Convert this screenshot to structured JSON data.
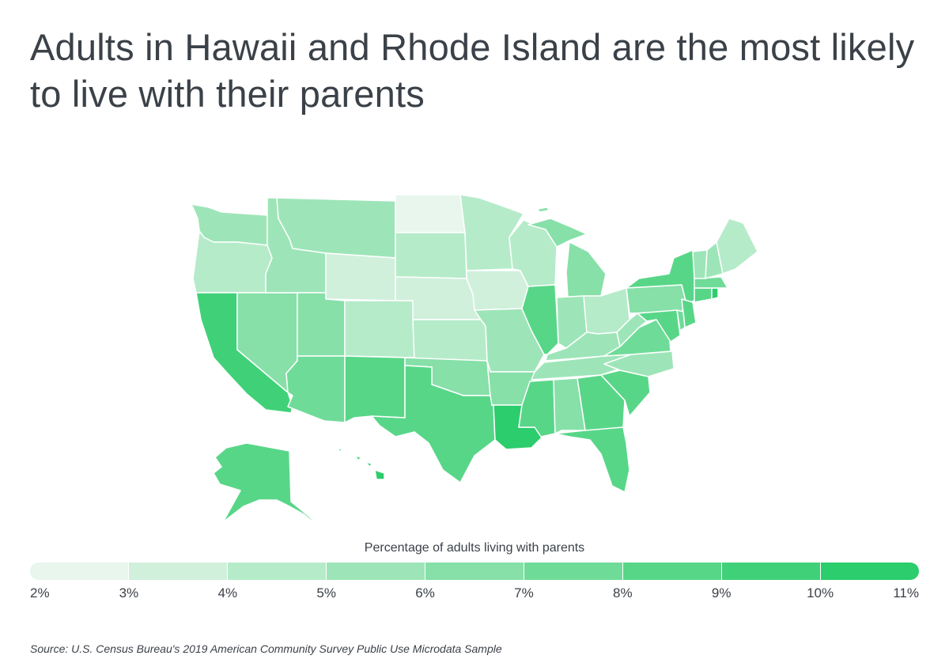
{
  "title": "Adults in Hawaii and Rhode Island are the most likely to live with their parents",
  "legend": {
    "title": "Percentage of adults living with parents",
    "ticks": [
      "2%",
      "3%",
      "4%",
      "5%",
      "6%",
      "7%",
      "8%",
      "9%",
      "10%",
      "11%"
    ],
    "colors": [
      "#e8f6ed",
      "#d0f0dc",
      "#b5ebc9",
      "#9de5b8",
      "#86e0a8",
      "#6fdb98",
      "#58d688",
      "#40d178",
      "#2bcd6c"
    ]
  },
  "source": "Source:  U.S. Census Bureau's 2019 American Community Survey Public Use Microdata Sample",
  "map": {
    "type": "choropleth",
    "regions": [
      {
        "name": "Washington",
        "color_bin": 3
      },
      {
        "name": "Oregon",
        "color_bin": 2
      },
      {
        "name": "California",
        "color_bin": 7
      },
      {
        "name": "Nevada",
        "color_bin": 4
      },
      {
        "name": "Idaho",
        "color_bin": 3
      },
      {
        "name": "Montana",
        "color_bin": 3
      },
      {
        "name": "Wyoming",
        "color_bin": 1
      },
      {
        "name": "Utah",
        "color_bin": 4
      },
      {
        "name": "Arizona",
        "color_bin": 5
      },
      {
        "name": "Colorado",
        "color_bin": 2
      },
      {
        "name": "New Mexico",
        "color_bin": 6
      },
      {
        "name": "North Dakota",
        "color_bin": 0
      },
      {
        "name": "South Dakota",
        "color_bin": 2
      },
      {
        "name": "Nebraska",
        "color_bin": 1
      },
      {
        "name": "Kansas",
        "color_bin": 2
      },
      {
        "name": "Oklahoma",
        "color_bin": 4
      },
      {
        "name": "Texas",
        "color_bin": 6
      },
      {
        "name": "Minnesota",
        "color_bin": 2
      },
      {
        "name": "Iowa",
        "color_bin": 1
      },
      {
        "name": "Missouri",
        "color_bin": 3
      },
      {
        "name": "Arkansas",
        "color_bin": 4
      },
      {
        "name": "Louisiana",
        "color_bin": 8
      },
      {
        "name": "Wisconsin",
        "color_bin": 2
      },
      {
        "name": "Illinois",
        "color_bin": 6
      },
      {
        "name": "Michigan",
        "color_bin": 4
      },
      {
        "name": "Indiana",
        "color_bin": 3
      },
      {
        "name": "Ohio",
        "color_bin": 2
      },
      {
        "name": "Kentucky",
        "color_bin": 3
      },
      {
        "name": "Tennessee",
        "color_bin": 3
      },
      {
        "name": "Mississippi",
        "color_bin": 6
      },
      {
        "name": "Alabama",
        "color_bin": 4
      },
      {
        "name": "Georgia",
        "color_bin": 6
      },
      {
        "name": "Florida",
        "color_bin": 6
      },
      {
        "name": "South Carolina",
        "color_bin": 6
      },
      {
        "name": "North Carolina",
        "color_bin": 3
      },
      {
        "name": "Virginia",
        "color_bin": 5
      },
      {
        "name": "West Virginia",
        "color_bin": 3
      },
      {
        "name": "Pennsylvania",
        "color_bin": 4
      },
      {
        "name": "New York",
        "color_bin": 6
      },
      {
        "name": "New Jersey",
        "color_bin": 6
      },
      {
        "name": "Maryland",
        "color_bin": 6
      },
      {
        "name": "Delaware",
        "color_bin": 5
      },
      {
        "name": "Connecticut",
        "color_bin": 6
      },
      {
        "name": "Rhode Island",
        "color_bin": 8
      },
      {
        "name": "Massachusetts",
        "color_bin": 5
      },
      {
        "name": "Vermont",
        "color_bin": 3
      },
      {
        "name": "New Hampshire",
        "color_bin": 3
      },
      {
        "name": "Maine",
        "color_bin": 2
      },
      {
        "name": "Alaska",
        "color_bin": 6
      },
      {
        "name": "Hawaii",
        "color_bin": 8
      }
    ]
  }
}
